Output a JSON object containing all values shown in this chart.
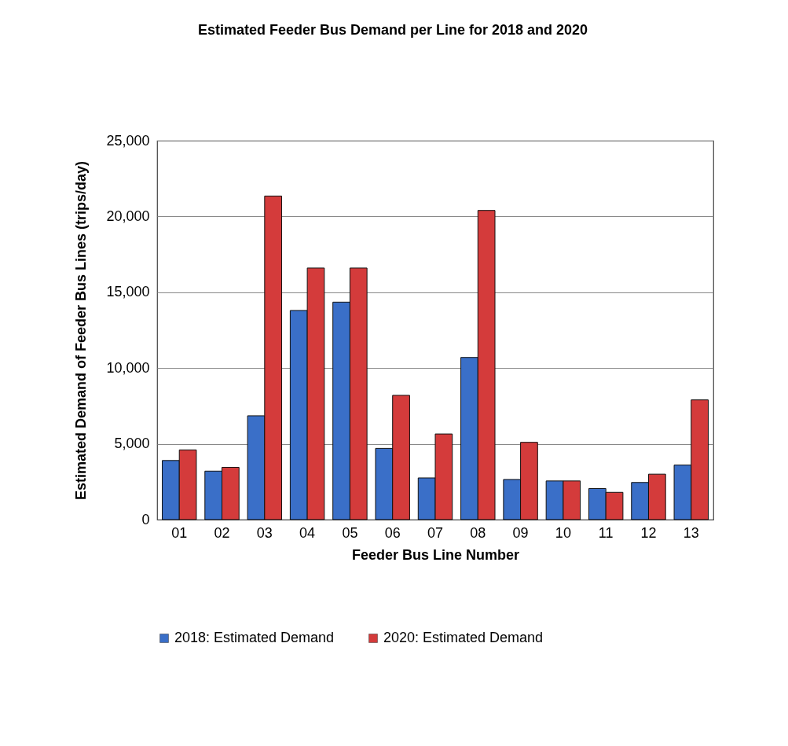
{
  "chart_data": {
    "type": "bar",
    "title": "Estimated Feeder Bus Demand per Line for 2018 and 2020",
    "xlabel": "Feeder Bus Line Number",
    "ylabel": "Estimated Demand of Feeder Bus Lines (trips/day)",
    "categories": [
      "01",
      "02",
      "03",
      "04",
      "05",
      "06",
      "07",
      "08",
      "09",
      "10",
      "11",
      "12",
      "13"
    ],
    "series": [
      {
        "name": "2018: Estimated Demand",
        "color": "#3a6fc8",
        "values": [
          3900,
          3200,
          6850,
          13800,
          14350,
          4700,
          2750,
          10700,
          2650,
          2550,
          2050,
          2450,
          3600
        ]
      },
      {
        "name": "2020: Estimated Demand",
        "color": "#d43b3b",
        "values": [
          4600,
          3450,
          21350,
          16600,
          16600,
          8200,
          5650,
          20400,
          5100,
          2550,
          1800,
          3000,
          7900
        ]
      }
    ],
    "ylim": [
      0,
      25000
    ],
    "yticks": [
      0,
      {
        "value": 5000,
        "label": "5,000"
      },
      {
        "value": 10000,
        "label": "10,000"
      },
      {
        "value": 15000,
        "label": "15,000"
      },
      {
        "value": 20000,
        "label": "20,000"
      },
      {
        "value": 25000,
        "label": "25,000"
      }
    ],
    "grid": "y",
    "legend": "bottom"
  }
}
